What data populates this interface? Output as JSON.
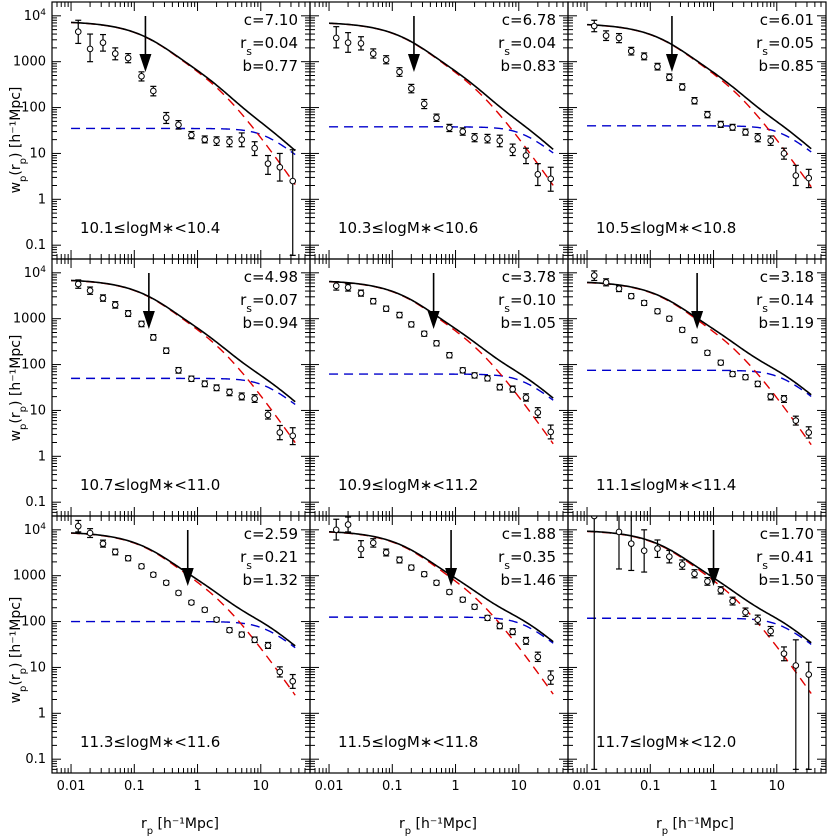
{
  "chart_data": {
    "type": "line",
    "layout": "3x3 panels, shared log axes",
    "xscale": "log",
    "yscale": "log",
    "xlim": [
      0.005,
      60
    ],
    "ylim": [
      0.05,
      20000
    ],
    "xlabel": {
      "main": "r",
      "sub": "p",
      "unit": "[h⁻¹Mpc]"
    },
    "ylabel": {
      "main": "w",
      "sub": "p",
      "paren_open": "(r",
      "paren_sub": "p",
      "paren_close": ")",
      "unit": "[h⁻¹Mpc]"
    },
    "xticks": [
      {
        "v": 0.01,
        "label": "0.01"
      },
      {
        "v": 0.1,
        "label": "0.1"
      },
      {
        "v": 1,
        "label": "1"
      },
      {
        "v": 10,
        "label": "10"
      }
    ],
    "yticks": [
      {
        "v": 0.1,
        "label": "0.1"
      },
      {
        "v": 1,
        "label": "1"
      },
      {
        "v": 10,
        "label": "10"
      },
      {
        "v": 100,
        "label": "100"
      },
      {
        "v": 1000,
        "label": "1000"
      },
      {
        "v": 10000,
        "label": "10",
        "sup": "4"
      }
    ],
    "legend": "none",
    "grid": false,
    "series_colors": {
      "total": "#000000",
      "one_halo": "#e00000",
      "two_halo": "#0000cc",
      "data": "#000000"
    },
    "panels": [
      {
        "range_label": "10.1≤logM∗<10.4",
        "c_label": "c=7.10",
        "rs_label": "r",
        "rs_sub": "s",
        "rs_value": "=0.04",
        "b_label": "b=0.77",
        "arrow_x": 0.15,
        "one_halo_amp": 7600,
        "two_halo_amp": 35,
        "data": [
          [
            0.013,
            4500,
            2500,
            8000
          ],
          [
            0.02,
            1900,
            1000,
            4000
          ],
          [
            0.032,
            2600,
            1700,
            3900
          ],
          [
            0.05,
            1500,
            1100,
            2000
          ],
          [
            0.08,
            1200,
            950,
            1500
          ],
          [
            0.13,
            480,
            380,
            600
          ],
          [
            0.2,
            230,
            180,
            290
          ],
          [
            0.32,
            60,
            45,
            78
          ],
          [
            0.5,
            42,
            34,
            52
          ],
          [
            0.8,
            25,
            21,
            30
          ],
          [
            1.3,
            20,
            17,
            24
          ],
          [
            2,
            19,
            15,
            23
          ],
          [
            3.2,
            18,
            14,
            23
          ],
          [
            5,
            20,
            14,
            28
          ],
          [
            8,
            13,
            9,
            18
          ],
          [
            13,
            6,
            3.5,
            9
          ],
          [
            20,
            5,
            2.5,
            10
          ],
          [
            32,
            2.5,
            0.06,
            12
          ]
        ]
      },
      {
        "range_label": "10.3≤logM∗<10.6",
        "c_label": "c=6.78",
        "rs_label": "r",
        "rs_sub": "s",
        "rs_value": "=0.04",
        "b_label": "b=0.83",
        "arrow_x": 0.22,
        "one_halo_amp": 7300,
        "two_halo_amp": 38,
        "data": [
          [
            0.013,
            3300,
            2000,
            5800
          ],
          [
            0.02,
            2600,
            1600,
            4300
          ],
          [
            0.032,
            2500,
            1800,
            3500
          ],
          [
            0.05,
            1500,
            1200,
            1900
          ],
          [
            0.08,
            1100,
            900,
            1350
          ],
          [
            0.13,
            600,
            480,
            740
          ],
          [
            0.2,
            260,
            210,
            320
          ],
          [
            0.32,
            120,
            95,
            150
          ],
          [
            0.5,
            60,
            50,
            72
          ],
          [
            0.8,
            36,
            30,
            43
          ],
          [
            1.3,
            30,
            25,
            36
          ],
          [
            2,
            22,
            18,
            27
          ],
          [
            3.2,
            21,
            17,
            26
          ],
          [
            5,
            19,
            14,
            25
          ],
          [
            8,
            12,
            9,
            16
          ],
          [
            13,
            9,
            6,
            13
          ],
          [
            20,
            3.5,
            2,
            6
          ],
          [
            32,
            2.8,
            1.5,
            5
          ]
        ]
      },
      {
        "range_label": "10.5≤logM∗<10.8",
        "c_label": "c=6.01",
        "rs_label": "r",
        "rs_sub": "s",
        "rs_value": "=0.05",
        "b_label": "b=0.85",
        "arrow_x": 0.22,
        "one_halo_amp": 6800,
        "two_halo_amp": 40,
        "data": [
          [
            0.013,
            6000,
            4500,
            8000
          ],
          [
            0.02,
            3700,
            2900,
            4700
          ],
          [
            0.032,
            3300,
            2600,
            4100
          ],
          [
            0.05,
            1700,
            1400,
            2050
          ],
          [
            0.08,
            1300,
            1100,
            1550
          ],
          [
            0.13,
            780,
            660,
            920
          ],
          [
            0.2,
            460,
            390,
            540
          ],
          [
            0.32,
            280,
            240,
            330
          ],
          [
            0.5,
            140,
            120,
            165
          ],
          [
            0.8,
            70,
            60,
            82
          ],
          [
            1.3,
            43,
            37,
            50
          ],
          [
            2,
            37,
            32,
            43
          ],
          [
            3.2,
            29,
            25,
            34
          ],
          [
            5,
            22,
            18,
            27
          ],
          [
            8,
            19,
            15,
            24
          ],
          [
            13,
            10,
            7.5,
            13
          ],
          [
            20,
            3.3,
            2,
            5.5
          ],
          [
            32,
            2.9,
            1.8,
            4.5
          ]
        ]
      },
      {
        "range_label": "10.7≤logM∗<11.0",
        "c_label": "c=4.98",
        "rs_label": "r",
        "rs_sub": "s",
        "rs_value": "=0.07",
        "b_label": "b=0.94",
        "arrow_x": 0.17,
        "one_halo_amp": 7200,
        "two_halo_amp": 50,
        "data": [
          [
            0.013,
            5700,
            4600,
            7000
          ],
          [
            0.02,
            4100,
            3400,
            4900
          ],
          [
            0.032,
            2800,
            2400,
            3300
          ],
          [
            0.05,
            2000,
            1700,
            2350
          ],
          [
            0.08,
            1300,
            1120,
            1500
          ],
          [
            0.13,
            770,
            670,
            880
          ],
          [
            0.2,
            390,
            340,
            450
          ],
          [
            0.32,
            200,
            175,
            230
          ],
          [
            0.5,
            75,
            65,
            86
          ],
          [
            0.8,
            49,
            43,
            56
          ],
          [
            1.3,
            38,
            33,
            44
          ],
          [
            2,
            31,
            27,
            36
          ],
          [
            3.2,
            25,
            21,
            29
          ],
          [
            5,
            20,
            17,
            24
          ],
          [
            8,
            18,
            15,
            22
          ],
          [
            13,
            8,
            6.5,
            10
          ],
          [
            20,
            3.3,
            2.3,
            4.7
          ],
          [
            32,
            2.8,
            1.8,
            4.2
          ]
        ]
      },
      {
        "range_label": "10.9≤logM∗<11.2",
        "c_label": "c=3.78",
        "rs_label": "r",
        "rs_sub": "s",
        "rs_value": "=0.10",
        "b_label": "b=1.05",
        "arrow_x": 0.45,
        "one_halo_amp": 6800,
        "two_halo_amp": 62,
        "data": [
          [
            0.013,
            5200,
            4200,
            6400
          ],
          [
            0.02,
            4800,
            4000,
            5700
          ],
          [
            0.032,
            3600,
            3100,
            4200
          ],
          [
            0.05,
            2400,
            2100,
            2750
          ],
          [
            0.08,
            1650,
            1450,
            1880
          ],
          [
            0.13,
            1200,
            1050,
            1370
          ],
          [
            0.2,
            750,
            660,
            850
          ],
          [
            0.32,
            470,
            415,
            530
          ],
          [
            0.5,
            290,
            255,
            330
          ],
          [
            0.8,
            160,
            140,
            182
          ],
          [
            1.3,
            75,
            66,
            85
          ],
          [
            2,
            58,
            51,
            66
          ],
          [
            3.2,
            50,
            44,
            57
          ],
          [
            5,
            32,
            28,
            37
          ],
          [
            8,
            29,
            25,
            34
          ],
          [
            13,
            19,
            16,
            23
          ],
          [
            20,
            9,
            7,
            11.5
          ],
          [
            32,
            3.4,
            2.4,
            4.8
          ]
        ]
      },
      {
        "range_label": "11.1≤logM∗<11.4",
        "c_label": "c=3.18",
        "rs_label": "r",
        "rs_sub": "s",
        "rs_value": "=0.14",
        "b_label": "b=1.19",
        "arrow_x": 0.55,
        "one_halo_amp": 6500,
        "two_halo_amp": 75,
        "data": [
          [
            0.013,
            8700,
            6800,
            11000
          ],
          [
            0.02,
            6200,
            5200,
            7400
          ],
          [
            0.032,
            4500,
            3900,
            5200
          ],
          [
            0.05,
            3100,
            2750,
            3500
          ],
          [
            0.08,
            2200,
            1950,
            2480
          ],
          [
            0.13,
            1450,
            1290,
            1630
          ],
          [
            0.2,
            1000,
            890,
            1120
          ],
          [
            0.32,
            570,
            510,
            640
          ],
          [
            0.5,
            340,
            300,
            385
          ],
          [
            0.8,
            180,
            160,
            202
          ],
          [
            1.3,
            110,
            98,
            124
          ],
          [
            2,
            62,
            55,
            70
          ],
          [
            3.2,
            53,
            47,
            60
          ],
          [
            5,
            38,
            33,
            43
          ],
          [
            8,
            20,
            17,
            23
          ],
          [
            13,
            18,
            15,
            21
          ],
          [
            20,
            6,
            4.8,
            7.5
          ],
          [
            32,
            3.3,
            2.5,
            4.4
          ]
        ]
      },
      {
        "range_label": "11.3≤logM∗<11.6",
        "c_label": "c=2.59",
        "rs_label": "r",
        "rs_sub": "s",
        "rs_value": "=0.21",
        "b_label": "b=1.32",
        "arrow_x": 0.7,
        "one_halo_amp": 9000,
        "two_halo_amp": 100,
        "data": [
          [
            0.013,
            12000,
            9000,
            16000
          ],
          [
            0.02,
            8500,
            6800,
            10600
          ],
          [
            0.032,
            5000,
            4200,
            5950
          ],
          [
            0.05,
            3300,
            2850,
            3800
          ],
          [
            0.08,
            2400,
            2120,
            2720
          ],
          [
            0.13,
            1600,
            1430,
            1790
          ],
          [
            0.2,
            1050,
            940,
            1170
          ],
          [
            0.32,
            700,
            630,
            780
          ],
          [
            0.5,
            420,
            380,
            465
          ],
          [
            0.8,
            260,
            235,
            288
          ],
          [
            1.3,
            180,
            162,
            200
          ],
          [
            2,
            110,
            99,
            122
          ],
          [
            3.2,
            65,
            58,
            73
          ],
          [
            5,
            52,
            46,
            59
          ],
          [
            8,
            40,
            35,
            46
          ],
          [
            13,
            30,
            26,
            35
          ],
          [
            20,
            8,
            6.2,
            10.3
          ],
          [
            32,
            5,
            3.5,
            7
          ]
        ]
      },
      {
        "range_label": "11.5≤logM∗<11.8",
        "c_label": "c=1.88",
        "rs_label": "r",
        "rs_sub": "s",
        "rs_value": "=0.35",
        "b_label": "b=1.46",
        "arrow_x": 0.85,
        "one_halo_amp": 9500,
        "two_halo_amp": 125,
        "data": [
          [
            0.013,
            10000,
            6000,
            17000
          ],
          [
            0.02,
            13000,
            9000,
            19000
          ],
          [
            0.032,
            3800,
            2500,
            5800
          ],
          [
            0.05,
            5200,
            4200,
            6400
          ],
          [
            0.08,
            3200,
            2700,
            3800
          ],
          [
            0.13,
            2200,
            1900,
            2550
          ],
          [
            0.2,
            1500,
            1330,
            1700
          ],
          [
            0.32,
            1080,
            960,
            1210
          ],
          [
            0.5,
            700,
            625,
            785
          ],
          [
            0.8,
            440,
            395,
            490
          ],
          [
            1.3,
            300,
            268,
            336
          ],
          [
            2,
            210,
            187,
            236
          ],
          [
            3.2,
            120,
            106,
            136
          ],
          [
            5,
            80,
            70,
            92
          ],
          [
            8,
            60,
            52,
            70
          ],
          [
            13,
            38,
            32,
            45
          ],
          [
            20,
            17,
            13.5,
            21.5
          ],
          [
            32,
            6,
            4.3,
            8.4
          ]
        ]
      },
      {
        "range_label": "11.7≤logM∗<12.0",
        "c_label": "c=1.70",
        "rs_label": "r",
        "rs_sub": "s",
        "rs_value": "=0.41",
        "b_label": "b=1.50",
        "arrow_x": 1.0,
        "one_halo_amp": 9800,
        "two_halo_amp": 118,
        "data": [
          [
            0.013,
            20000,
            0.06,
            65000
          ],
          [
            0.032,
            9000,
            1400,
            50000
          ],
          [
            0.05,
            5000,
            1300,
            20000
          ],
          [
            0.08,
            3500,
            1200,
            10000
          ],
          [
            0.13,
            3900,
            2500,
            6000
          ],
          [
            0.2,
            2600,
            1900,
            3550
          ],
          [
            0.32,
            1750,
            1380,
            2200
          ],
          [
            0.5,
            1100,
            900,
            1350
          ],
          [
            0.8,
            750,
            620,
            910
          ],
          [
            1.3,
            480,
            400,
            575
          ],
          [
            2,
            280,
            230,
            340
          ],
          [
            3.2,
            160,
            130,
            197
          ],
          [
            5,
            110,
            88,
            138
          ],
          [
            8,
            62,
            49,
            78
          ],
          [
            13,
            20,
            14,
            28
          ],
          [
            20,
            11,
            0.06,
            40
          ],
          [
            32,
            7,
            0.06,
            13
          ]
        ]
      }
    ]
  }
}
